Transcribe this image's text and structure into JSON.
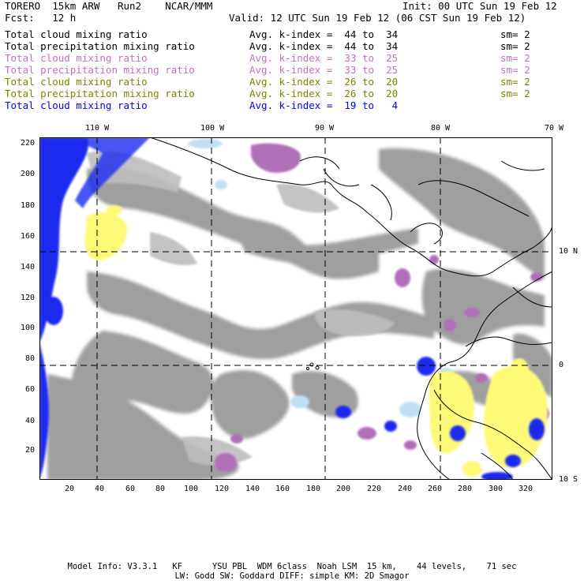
{
  "header": {
    "model_title": "TORERO  15km ARW   Run2    NCAR/MMM",
    "init": "Init: 00 UTC Sun 19 Feb 12",
    "fcst": "Fcst:   12 h",
    "valid": "Valid: 12 UTC Sun 19 Feb 12 (06 CST Sun 19 Feb 12)"
  },
  "fields": [
    {
      "name": "Total cloud mixing ratio",
      "range": "Avg. k-index =  44 to  34",
      "sm": "sm= 2",
      "color": "#000000"
    },
    {
      "name": "Total precipitation mixing ratio",
      "range": "Avg. k-index =  44 to  34",
      "sm": "sm= 2",
      "color": "#000000"
    },
    {
      "name": "Total cloud mixing ratio",
      "range": "Avg. k-index =  33 to  25",
      "sm": "sm= 2",
      "color": "#c070c0"
    },
    {
      "name": "Total precipitation mixing ratio",
      "range": "Avg. k-index =  33 to  25",
      "sm": "sm= 2",
      "color": "#c070c0"
    },
    {
      "name": "Total cloud mixing ratio",
      "range": "Avg. k-index =  26 to  20",
      "sm": "sm= 2",
      "color": "#808000"
    },
    {
      "name": "Total precipitation mixing ratio",
      "range": "Avg. k-index =  26 to  20",
      "sm": "sm= 2",
      "color": "#808000"
    },
    {
      "name": "Total cloud mixing ratio",
      "range": "Avg. k-index =  19 to   4",
      "sm": "",
      "color": "#0000ff"
    }
  ],
  "map": {
    "lon_labels": [
      "110 W",
      "100 W",
      "90 W",
      "80 W",
      "70 W"
    ],
    "lat_labels": [
      "10 N",
      "0",
      "10 S"
    ],
    "y_ticks": [
      "220",
      "200",
      "180",
      "160",
      "140",
      "120",
      "100",
      "80",
      "60",
      "40",
      "20"
    ],
    "x_ticks": [
      "20",
      "40",
      "60",
      "80",
      "100",
      "120",
      "140",
      "160",
      "180",
      "200",
      "220",
      "240",
      "260",
      "280",
      "300",
      "320"
    ],
    "colors": {
      "gray": "#9a9a9a",
      "gray_light": "#bdbdbd",
      "purple": "#b070b8",
      "yellow": "#fdfa78",
      "blue": "#1a2cf0",
      "lightblue": "#bfe0f4",
      "coast": "#000000"
    }
  },
  "footer": {
    "line1": "Model Info: V3.3.1   KF      YSU PBL  WDM 6class  Noah LSM  15 km,    44 levels,    71 sec",
    "line2": "LW: Godd SW: Goddard DIFF: simple KM: 2D Smagor"
  }
}
